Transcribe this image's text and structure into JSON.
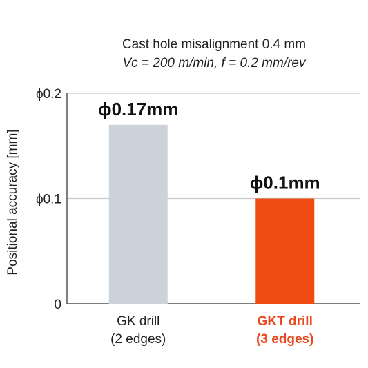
{
  "chart_data": {
    "type": "bar",
    "title": "Cast hole misalignment 0.4 mm",
    "subtitle": "Vc = 200 m/min, f = 0.2 mm/rev",
    "ylabel": "Positional accuracy [mm]",
    "xlabel": "",
    "ylim": [
      0,
      0.2
    ],
    "yticks": [
      {
        "value": 0,
        "label": "0"
      },
      {
        "value": 0.1,
        "label": "ϕ0.1"
      },
      {
        "value": 0.2,
        "label": "ϕ0.2"
      }
    ],
    "categories": [
      {
        "line1": "GK drill",
        "line2": "(2 edges)",
        "highlight": false
      },
      {
        "line1": "GKT drill",
        "line2": "(3 edges)",
        "highlight": true
      }
    ],
    "values": [
      0.17,
      0.1
    ],
    "data_labels": [
      "ϕ0.17mm",
      "ϕ0.1mm"
    ],
    "bar_colors": [
      "#cdd3db",
      "#ee4c12"
    ],
    "highlight_color": "#e8491e",
    "grid": "horizontal at 0.1 and 0.2"
  }
}
